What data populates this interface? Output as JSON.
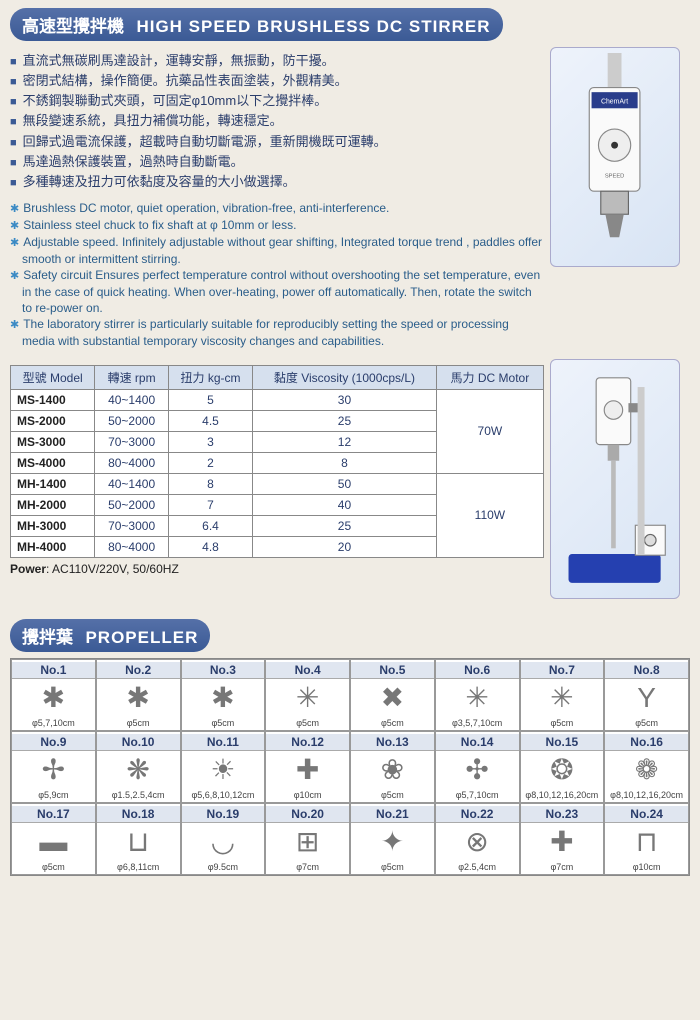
{
  "title": {
    "cn": "高速型攪拌機",
    "en": "HIGH SPEED BRUSHLESS DC STIRRER"
  },
  "bullets_cn": [
    "直流式無碳刷馬達設計，運轉安靜，無振動，防干擾。",
    "密閉式結構，操作簡便。抗藥品性表面塗裝，外觀精美。",
    "不銹鋼製聯動式夾頭，可固定φ10mm以下之攪拌棒。",
    "無段變速系統，具扭力補償功能，轉速穩定。",
    "回歸式過電流保護，超載時自動切斷電源，重新開機既可運轉。",
    "馬達過熱保護裝置，過熱時自動斷電。",
    "多種轉速及扭力可依黏度及容量的大小做選擇。"
  ],
  "bullets_en": [
    "Brushless DC motor, quiet operation, vibration-free, anti-interference.",
    "Stainless steel chuck to fix shaft at φ 10mm or less.",
    "Adjustable speed. Infinitely adjustable without gear shifting, Integrated torque trend , paddles offer smooth or intermittent stirring.",
    "Safety circuit Ensures perfect temperature control without overshooting the set temperature, even in the case of quick heating. When over-heating, power off automatically. Then, rotate the switch to re-power on.",
    "The laboratory stirrer is particularly suitable for reproducibly setting the speed or processing media with substantial temporary viscosity changes and capabilities."
  ],
  "table": {
    "headers": [
      "型號 Model",
      "轉速 rpm",
      "扭力 kg-cm",
      "黏度 Viscosity (1000cps/L)",
      "馬力 DC Motor"
    ],
    "rows": [
      {
        "model": "MS-1400",
        "rpm": "40~1400",
        "torque": "5",
        "visc": "30",
        "motor": "70W",
        "span": 4
      },
      {
        "model": "MS-2000",
        "rpm": "50~2000",
        "torque": "4.5",
        "visc": "25"
      },
      {
        "model": "MS-3000",
        "rpm": "70~3000",
        "torque": "3",
        "visc": "12"
      },
      {
        "model": "MS-4000",
        "rpm": "80~4000",
        "torque": "2",
        "visc": "8"
      },
      {
        "model": "MH-1400",
        "rpm": "40~1400",
        "torque": "8",
        "visc": "50",
        "motor": "110W",
        "span": 4
      },
      {
        "model": "MH-2000",
        "rpm": "50~2000",
        "torque": "7",
        "visc": "40"
      },
      {
        "model": "MH-3000",
        "rpm": "70~3000",
        "torque": "6.4",
        "visc": "25"
      },
      {
        "model": "MH-4000",
        "rpm": "80~4000",
        "torque": "4.8",
        "visc": "20"
      }
    ]
  },
  "power_note_label": "Power",
  "power_note_value": ": AC110V/220V, 50/60HZ",
  "propeller_title": {
    "cn": "攪拌葉",
    "en": "PROPELLER"
  },
  "propellers": [
    {
      "no": "No.1",
      "size": "φ5,7,10cm",
      "glyph": "✱"
    },
    {
      "no": "No.2",
      "size": "φ5cm",
      "glyph": "✱"
    },
    {
      "no": "No.3",
      "size": "φ5cm",
      "glyph": "✱"
    },
    {
      "no": "No.4",
      "size": "φ5cm",
      "glyph": "✳"
    },
    {
      "no": "No.5",
      "size": "φ5cm",
      "glyph": "✖"
    },
    {
      "no": "No.6",
      "size": "φ3,5,7,10cm",
      "glyph": "✳"
    },
    {
      "no": "No.7",
      "size": "φ5cm",
      "glyph": "✳"
    },
    {
      "no": "No.8",
      "size": "φ5cm",
      "glyph": "Y"
    },
    {
      "no": "No.9",
      "size": "φ5,9cm",
      "glyph": "✢"
    },
    {
      "no": "No.10",
      "size": "φ1.5,2.5,4cm",
      "glyph": "❋"
    },
    {
      "no": "No.11",
      "size": "φ5,6,8,10,12cm",
      "glyph": "☀"
    },
    {
      "no": "No.12",
      "size": "φ10cm",
      "glyph": "✚"
    },
    {
      "no": "No.13",
      "size": "φ5cm",
      "glyph": "❀"
    },
    {
      "no": "No.14",
      "size": "φ5,7,10cm",
      "glyph": "✣"
    },
    {
      "no": "No.15",
      "size": "φ8,10,12,16,20cm",
      "glyph": "❂"
    },
    {
      "no": "No.16",
      "size": "φ8,10,12,16,20cm",
      "glyph": "❁"
    },
    {
      "no": "No.17",
      "size": "φ5cm",
      "glyph": "▬"
    },
    {
      "no": "No.18",
      "size": "φ6,8,11cm",
      "glyph": "⊔"
    },
    {
      "no": "No.19",
      "size": "φ9.5cm",
      "glyph": "◡"
    },
    {
      "no": "No.20",
      "size": "φ7cm",
      "glyph": "⊞"
    },
    {
      "no": "No.21",
      "size": "φ5cm",
      "glyph": "✦"
    },
    {
      "no": "No.22",
      "size": "φ2.5,4cm",
      "glyph": "⊗"
    },
    {
      "no": "No.23",
      "size": "φ7cm",
      "glyph": "✚"
    },
    {
      "no": "No.24",
      "size": "φ10cm",
      "glyph": "⊓"
    }
  ]
}
